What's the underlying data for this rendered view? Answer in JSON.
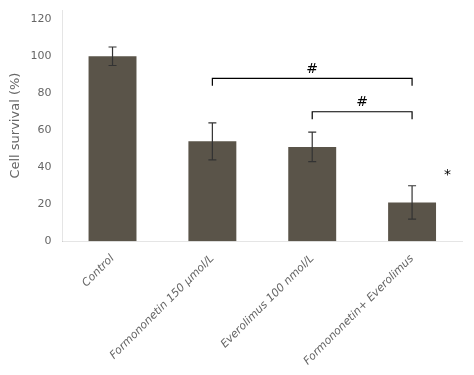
{
  "chart_data": {
    "type": "bar",
    "categories": [
      "Control",
      "Formononetin 150 μmol/L",
      "Everolimus 100 nmol/L",
      "Formononetin+ Everolimus"
    ],
    "values": [
      100,
      54,
      51,
      21
    ],
    "errors": [
      5,
      10,
      8,
      9
    ],
    "color": "#5a5449",
    "ylabel": "Cell survival (%)",
    "ylim": [
      0,
      125
    ],
    "yticks": [
      0,
      20,
      40,
      60,
      80,
      100,
      120
    ],
    "grid": false,
    "annotations": [
      {
        "text": "#",
        "x1": "Formononetin 150 μmol/L",
        "x2": "Formononetin+ Everolimus",
        "y": 88,
        "drop": 4
      },
      {
        "text": "#",
        "x1": "Everolimus 100 nmol/L",
        "x2": "Formononetin+ Everolimus",
        "y": 70,
        "drop": 4
      },
      {
        "text": "*",
        "x": "Formononetin+ Everolimus",
        "y": 32
      }
    ]
  }
}
